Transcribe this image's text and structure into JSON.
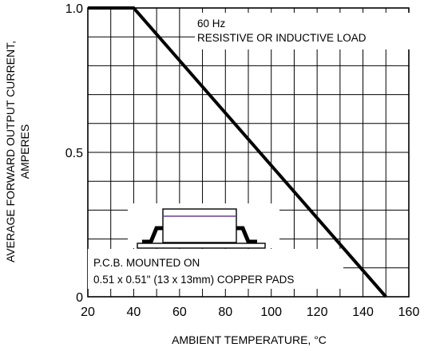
{
  "chart_data": {
    "type": "line",
    "xlabel": "AMBIENT TEMPERATURE, °C",
    "ylabel_lines": [
      "AVERAGE FORWARD OUTPUT CURRENT,",
      "AMPERES"
    ],
    "x_ticks": [
      20,
      40,
      60,
      80,
      100,
      120,
      140,
      160
    ],
    "y_ticks": [
      "0",
      "0.5",
      "1.0"
    ],
    "xlim": [
      20,
      160
    ],
    "ylim": [
      0,
      1.0
    ],
    "grid": true,
    "series": [
      {
        "x": [
          20,
          40,
          150
        ],
        "y": [
          1.0,
          1.0,
          0
        ]
      }
    ],
    "annotations": {
      "top_line1": "60 Hz",
      "top_line2": "RESISTIVE OR INDUCTIVE LOAD",
      "bottom_line1": "P.C.B. MOUNTED ON",
      "bottom_line2": "0.51 x 0.51\" (13 x 13mm) COPPER PADS"
    },
    "colors": {
      "line": "#000000",
      "grid": "#000000",
      "package_stripe": "#6a3d9a"
    }
  }
}
